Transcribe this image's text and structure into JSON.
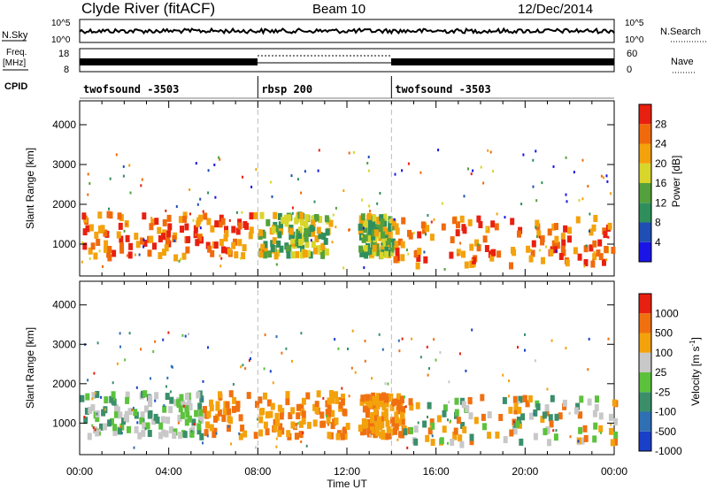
{
  "header": {
    "title": "Clyde River (fitACF)",
    "beam": "Beam 10",
    "date": "12/Dec/2014"
  },
  "top_panels": {
    "nsky_label": "N.Sky",
    "nsky_ticks": [
      "10^5",
      "10^0"
    ],
    "nsearch_label": "N.Search",
    "nsearch_ticks": [
      "10^5",
      "10^0"
    ],
    "freq_label_1": "Freq.",
    "freq_label_2": "[MHz]",
    "freq_ticks": [
      "18",
      "8"
    ],
    "nave_label": "Nave",
    "nave_ticks": [
      "60",
      "0"
    ],
    "cpid_label": "CPID",
    "cpid_segments": [
      {
        "label": "twofsound -3503",
        "start_hr": 0,
        "end_hr": 8
      },
      {
        "label": "rbsp 200",
        "start_hr": 8,
        "end_hr": 14
      },
      {
        "label": "twofsound -3503",
        "start_hr": 14,
        "end_hr": 24
      }
    ]
  },
  "chart_data": [
    {
      "type": "heatmap",
      "name": "power-panel",
      "ylabel": "Slant Range [km]",
      "yticks": [
        "1000",
        "2000",
        "3000",
        "4000"
      ],
      "ylim": [
        200,
        4600
      ],
      "xlim": [
        0,
        24
      ],
      "xticks": [
        "00:00",
        "04:00",
        "08:00",
        "12:00",
        "16:00",
        "20:00",
        "00:00"
      ],
      "colorbar": {
        "label": "Power [dB]",
        "ticks": [
          "4",
          "8",
          "12",
          "16",
          "20",
          "24",
          "28"
        ],
        "colors": [
          "#1a14e6",
          "#1f4fb4",
          "#2f8f5c",
          "#54a03c",
          "#d8d62a",
          "#f3a20c",
          "#f06a0c",
          "#e82010"
        ]
      },
      "bands": [
        {
          "start_hr": 0.0,
          "end_hr": 7.9,
          "range_low": 650,
          "range_high": 1750,
          "level": "high"
        },
        {
          "start_hr": 8.0,
          "end_hr": 11.2,
          "range_low": 700,
          "range_high": 1750,
          "level": "mid"
        },
        {
          "start_hr": 12.5,
          "end_hr": 14.0,
          "range_low": 700,
          "range_high": 1700,
          "level": "mid"
        },
        {
          "start_hr": 14.0,
          "end_hr": 24.0,
          "range_low": 450,
          "range_high": 1650,
          "level": "high"
        }
      ]
    },
    {
      "type": "heatmap",
      "name": "velocity-panel",
      "ylabel": "Slant Range [km]",
      "yticks": [
        "1000",
        "2000",
        "3000",
        "4000"
      ],
      "ylim": [
        200,
        4600
      ],
      "xlim": [
        0,
        24
      ],
      "xticks": [
        "00:00",
        "04:00",
        "08:00",
        "12:00",
        "16:00",
        "20:00",
        "00:00"
      ],
      "xlabel": "Time UT",
      "colorbar": {
        "label": "Velocity [m s",
        "label_exp": "-1",
        "label_end": "]",
        "ticks": [
          "1000",
          "500",
          "100",
          "25",
          "-25",
          "-100",
          "-500",
          "-1000"
        ],
        "colors": [
          "#1a3fc8",
          "#2f6fb4",
          "#3a8f6a",
          "#5cc23c",
          "#c8c8c8",
          "#f3a20c",
          "#f07010",
          "#e82010"
        ]
      },
      "bands": [
        {
          "start_hr": 0.0,
          "end_hr": 5.5,
          "range_low": 650,
          "range_high": 1750,
          "level": "toward"
        },
        {
          "start_hr": 5.5,
          "end_hr": 12.0,
          "range_low": 650,
          "range_high": 1750,
          "level": "away"
        },
        {
          "start_hr": 12.5,
          "end_hr": 14.5,
          "range_low": 650,
          "range_high": 1700,
          "level": "away"
        },
        {
          "start_hr": 14.5,
          "end_hr": 24.0,
          "range_low": 450,
          "range_high": 1650,
          "level": "mixed"
        }
      ]
    }
  ]
}
